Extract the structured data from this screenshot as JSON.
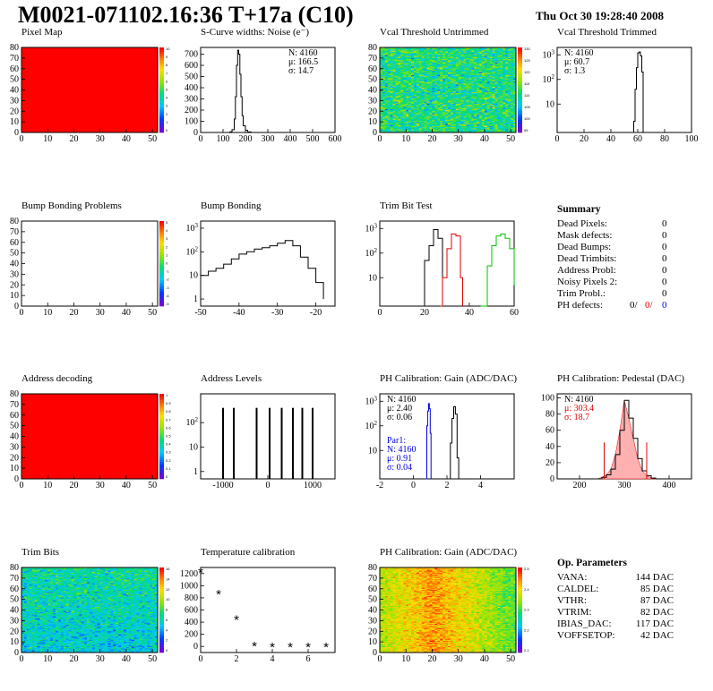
{
  "title": "M0021-071102.16:36 T+17a (C10)",
  "timestamp": "Thu Oct 30 19:28:40 2008",
  "colors": {
    "black": "#000000",
    "red": "#e00000",
    "green": "#00c000",
    "blue": "#0000e0",
    "fill_red": "#ff0000"
  },
  "chart_data": [
    {
      "id": "pixel-map",
      "type": "heatmap",
      "title": "Pixel Map",
      "xlim": [
        0,
        52
      ],
      "ylim": [
        0,
        80
      ],
      "x_ticks": [
        0,
        10,
        20,
        30,
        40,
        50
      ],
      "y_ticks": [
        0,
        10,
        20,
        30,
        40,
        50,
        60,
        70,
        80
      ],
      "uniform_value": 10,
      "palette_ticks": [
        "10",
        "9",
        "8",
        "7",
        "6",
        "5",
        "4",
        "3",
        "2",
        "1",
        "0"
      ]
    },
    {
      "id": "scurve-noise",
      "type": "histogram",
      "title": "S-Curve widths: Noise (e⁻)",
      "xlim": [
        0,
        600
      ],
      "ylim": [
        0,
        760
      ],
      "x_ticks": [
        0,
        100,
        200,
        300,
        400,
        500,
        600
      ],
      "y_ticks": [
        0,
        100,
        200,
        300,
        400,
        500,
        600,
        700
      ],
      "stats": [
        "N: 4160",
        "μ: 166.5",
        "σ: 14.7"
      ],
      "bins": [
        [
          120,
          0
        ],
        [
          130,
          5
        ],
        [
          140,
          25
        ],
        [
          150,
          120
        ],
        [
          155,
          320
        ],
        [
          160,
          600
        ],
        [
          165,
          735
        ],
        [
          170,
          700
        ],
        [
          175,
          520
        ],
        [
          180,
          320
        ],
        [
          185,
          150
        ],
        [
          190,
          60
        ],
        [
          200,
          20
        ],
        [
          210,
          5
        ],
        [
          225,
          0
        ]
      ]
    },
    {
      "id": "vcal-untrimmed",
      "type": "heatmap",
      "title": "Vcal Threshold Untrimmed",
      "xlim": [
        0,
        52
      ],
      "ylim": [
        0,
        80
      ],
      "x_ticks": [
        0,
        10,
        20,
        30,
        40,
        50
      ],
      "y_ticks": [
        0,
        10,
        20,
        30,
        40,
        50,
        60,
        70,
        80
      ],
      "value_range": [
        95,
        130
      ],
      "palette_ticks": [
        "130",
        "125",
        "120",
        "115",
        "110",
        "105",
        "100",
        "95"
      ]
    },
    {
      "id": "vcal-trimmed",
      "type": "histogram",
      "title": "Vcal Threshold Trimmed",
      "log": true,
      "xlim": [
        0,
        100
      ],
      "ylim": [
        0.7,
        2000
      ],
      "x_ticks": [
        0,
        20,
        40,
        60,
        80,
        100
      ],
      "y_ticks": [
        10,
        100,
        1000
      ],
      "stats": [
        "N: 4160",
        "μ: 60.7",
        "σ: 1.3"
      ],
      "bins": [
        [
          56,
          0
        ],
        [
          57,
          2
        ],
        [
          58,
          40
        ],
        [
          59,
          300
        ],
        [
          60,
          1200
        ],
        [
          61,
          1300
        ],
        [
          62,
          900
        ],
        [
          63,
          200
        ],
        [
          64,
          0
        ]
      ]
    },
    {
      "id": "bump-problems",
      "type": "heatmap",
      "title": "Bump Bonding Problems",
      "xlim": [
        0,
        52
      ],
      "ylim": [
        0,
        80
      ],
      "x_ticks": [
        0,
        10,
        20,
        30,
        40,
        50
      ],
      "y_ticks": [
        0,
        10,
        20,
        30,
        40,
        50,
        60,
        70,
        80
      ],
      "empty": true,
      "palette_ticks": [
        "5",
        "4",
        "3",
        "2",
        "1",
        "0",
        "-1",
        "-2",
        "-3",
        "-4",
        "-5"
      ]
    },
    {
      "id": "bump-bonding",
      "type": "histogram",
      "title": "Bump Bonding",
      "log": true,
      "xlim": [
        -50,
        -15
      ],
      "ylim": [
        0.5,
        2000
      ],
      "x_ticks": [
        -50,
        -40,
        -30,
        -20
      ],
      "y_ticks": [
        1,
        10,
        100,
        1000
      ],
      "bins": [
        [
          -50,
          10
        ],
        [
          -48,
          15
        ],
        [
          -46,
          20
        ],
        [
          -44,
          30
        ],
        [
          -42,
          50
        ],
        [
          -40,
          80
        ],
        [
          -38,
          100
        ],
        [
          -36,
          130
        ],
        [
          -34,
          150
        ],
        [
          -32,
          180
        ],
        [
          -30,
          230
        ],
        [
          -28,
          300
        ],
        [
          -26,
          180
        ],
        [
          -24,
          60
        ],
        [
          -22,
          20
        ],
        [
          -20,
          5
        ],
        [
          -18,
          1
        ]
      ]
    },
    {
      "id": "trim-bit-test",
      "type": "histogram",
      "title": "Trim Bit Test",
      "log": true,
      "xlim": [
        0,
        60
      ],
      "ylim": [
        0.7,
        2000
      ],
      "x_ticks": [
        0,
        20,
        40,
        60
      ],
      "y_ticks": [
        10,
        100,
        1000
      ],
      "series": [
        {
          "color": "black",
          "bins": [
            [
              19,
              0
            ],
            [
              20,
              50
            ],
            [
              22,
              200
            ],
            [
              24,
              900
            ],
            [
              26,
              400
            ],
            [
              28,
              0
            ]
          ]
        },
        {
          "color": "red",
          "bins": [
            [
              27,
              0
            ],
            [
              28,
              10
            ],
            [
              30,
              150
            ],
            [
              32,
              600
            ],
            [
              34,
              500
            ],
            [
              36,
              10
            ],
            [
              37,
              0
            ]
          ]
        },
        {
          "color": "green",
          "bins": [
            [
              45,
              0
            ],
            [
              48,
              30
            ],
            [
              50,
              200
            ],
            [
              52,
              500
            ],
            [
              54,
              600
            ],
            [
              56,
              400
            ],
            [
              58,
              150
            ],
            [
              60,
              5
            ]
          ]
        }
      ]
    },
    {
      "id": "address-decoding",
      "type": "heatmap",
      "title": "Address decoding",
      "xlim": [
        0,
        52
      ],
      "ylim": [
        0,
        80
      ],
      "x_ticks": [
        0,
        10,
        20,
        30,
        40,
        50
      ],
      "y_ticks": [
        0,
        10,
        20,
        30,
        40,
        50,
        60,
        70,
        80
      ],
      "uniform_value": 1,
      "palette_ticks": [
        "1",
        "0.9",
        "0.8",
        "0.7",
        "0.6",
        "0.5",
        "0.4",
        "0.3",
        "0.2",
        "0.1",
        "0"
      ]
    },
    {
      "id": "address-levels",
      "type": "histogram",
      "title": "Address Levels",
      "log": true,
      "xlim": [
        -1500,
        1500
      ],
      "ylim": [
        0.5,
        1500
      ],
      "x_ticks": [
        -1000,
        0,
        1000
      ],
      "y_ticks": [
        1,
        10,
        100
      ],
      "peaks": [
        [
          -1000,
          400
        ],
        [
          -760,
          400
        ],
        [
          -250,
          400
        ],
        [
          40,
          400
        ],
        [
          310,
          400
        ],
        [
          560,
          400
        ],
        [
          770,
          400
        ],
        [
          1000,
          400
        ]
      ]
    },
    {
      "id": "ph-gain",
      "type": "histogram",
      "title": "PH Calibration: Gain (ADC/DAC)",
      "log": true,
      "xlim": [
        -2,
        6
      ],
      "ylim": [
        0.7,
        2000
      ],
      "x_ticks": [
        -2,
        0,
        2,
        4
      ],
      "y_ticks": [
        10,
        100,
        1000
      ],
      "stats": [
        "N: 4160",
        "μ: 2.40",
        "σ: 0.06"
      ],
      "stats2": [
        "Par1:",
        "N: 4160",
        "μ: 0.91",
        "σ: 0.04"
      ],
      "series": [
        {
          "color": "black",
          "bins": [
            [
              2.1,
              0
            ],
            [
              2.2,
              20
            ],
            [
              2.3,
              200
            ],
            [
              2.4,
              600
            ],
            [
              2.5,
              300
            ],
            [
              2.6,
              5
            ],
            [
              2.7,
              0
            ]
          ]
        },
        {
          "color": "blue",
          "bins": [
            [
              0.75,
              0
            ],
            [
              0.8,
              100
            ],
            [
              0.85,
              400
            ],
            [
              0.9,
              800
            ],
            [
              0.95,
              500
            ],
            [
              1.0,
              50
            ],
            [
              1.05,
              0
            ]
          ]
        }
      ]
    },
    {
      "id": "ph-pedestal",
      "type": "histogram",
      "title": "PH Calibration: Pedestal (DAC)",
      "xlim": [
        150,
        450
      ],
      "ylim": [
        0,
        105
      ],
      "x_ticks": [
        200,
        300,
        400
      ],
      "y_ticks": [
        0,
        20,
        40,
        60,
        80,
        100
      ],
      "stats": [
        "N: 4160",
        "μ: 303.4",
        "σ: 18.7"
      ],
      "markers": [
        255,
        350
      ],
      "bins": [
        [
          240,
          0
        ],
        [
          250,
          2
        ],
        [
          260,
          5
        ],
        [
          270,
          12
        ],
        [
          280,
          30
        ],
        [
          290,
          60
        ],
        [
          300,
          97
        ],
        [
          310,
          75
        ],
        [
          320,
          50
        ],
        [
          330,
          25
        ],
        [
          340,
          10
        ],
        [
          350,
          4
        ],
        [
          360,
          1
        ],
        [
          370,
          0
        ]
      ]
    },
    {
      "id": "trim-bits",
      "type": "heatmap",
      "title": "Trim Bits",
      "xlim": [
        0,
        52
      ],
      "ylim": [
        0,
        80
      ],
      "x_ticks": [
        0,
        10,
        20,
        30,
        40,
        50
      ],
      "y_ticks": [
        0,
        10,
        20,
        30,
        40,
        50,
        60,
        70,
        80
      ],
      "value_range": [
        0,
        16
      ],
      "palette_ticks": [
        "16",
        "14",
        "12",
        "10",
        "8",
        "6",
        "4",
        "2",
        "0"
      ]
    },
    {
      "id": "temp-calibration",
      "type": "scatter",
      "title": "Temperature calibration",
      "xlim": [
        0,
        7.5
      ],
      "ylim": [
        -100,
        1300
      ],
      "x_ticks": [
        0,
        2,
        4,
        6
      ],
      "y_ticks": [
        0,
        200,
        400,
        600,
        800,
        1000,
        1200
      ],
      "points": [
        [
          0,
          1220
        ],
        [
          1,
          860
        ],
        [
          2,
          440
        ],
        [
          3,
          0
        ],
        [
          4,
          -10
        ],
        [
          5,
          -15
        ],
        [
          6,
          -15
        ],
        [
          7,
          -15
        ]
      ]
    },
    {
      "id": "ph-gain-map",
      "type": "heatmap",
      "title": "PH Calibration: Gain (ADC/DAC)",
      "xlim": [
        0,
        52
      ],
      "ylim": [
        0,
        80
      ],
      "x_ticks": [
        0,
        10,
        20,
        30,
        40,
        50
      ],
      "y_ticks": [
        0,
        10,
        20,
        30,
        40,
        50,
        60,
        70,
        80
      ],
      "value_range": [
        2.0,
        2.6
      ],
      "palette_ticks": [
        "2.5",
        "2.4",
        "2.3",
        "2.2",
        "2.1"
      ]
    }
  ],
  "summary": {
    "title": "Summary",
    "rows": [
      {
        "label": "Dead Pixels:",
        "value": "0"
      },
      {
        "label": "Mask defects:",
        "value": "0"
      },
      {
        "label": "Dead Bumps:",
        "value": "0"
      },
      {
        "label": "Dead Trimbits:",
        "value": "0"
      },
      {
        "label": "Address Probl:",
        "value": "0"
      },
      {
        "label": "Noisy Pixels 2:",
        "value": "0"
      },
      {
        "label": "Trim Probl.:",
        "value": "0"
      }
    ],
    "ph_label": "PH defects:",
    "ph_values": [
      "0/",
      "0/",
      "0"
    ]
  },
  "op_params": {
    "title": "Op. Parameters",
    "rows": [
      {
        "label": "VANA:",
        "value": "144 DAC"
      },
      {
        "label": "CALDEL:",
        "value": "85 DAC"
      },
      {
        "label": "VTHR:",
        "value": "87 DAC"
      },
      {
        "label": "VTRIM:",
        "value": "82 DAC"
      },
      {
        "label": "IBIAS_DAC:",
        "value": "117 DAC"
      },
      {
        "label": "VOFFSETOP:",
        "value": "42 DAC"
      }
    ]
  }
}
